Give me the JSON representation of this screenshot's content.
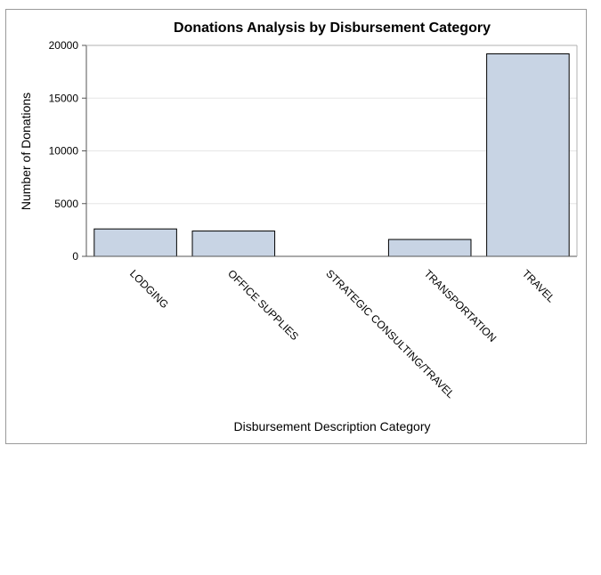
{
  "chart_data": {
    "type": "bar",
    "title": "Donations Analysis by Disbursement Category",
    "xlabel": "Disbursement Description  Category",
    "ylabel": "Number of Donations",
    "categories": [
      "LODGING",
      "OFFICE SUPPLIES",
      "STRATEGIC CONSULTING/TRAVEL",
      "TRANSPORTATION",
      "TRAVEL"
    ],
    "values": [
      2600,
      2400,
      0,
      1600,
      19200
    ],
    "ylim": [
      0,
      20000
    ],
    "yticks": [
      0,
      5000,
      10000,
      15000,
      20000
    ],
    "grid": true,
    "colors": {
      "bar_fill": "#c8d4e4",
      "bar_stroke": "#000000",
      "grid": "#e6e6e6",
      "axis": "#555555"
    }
  }
}
